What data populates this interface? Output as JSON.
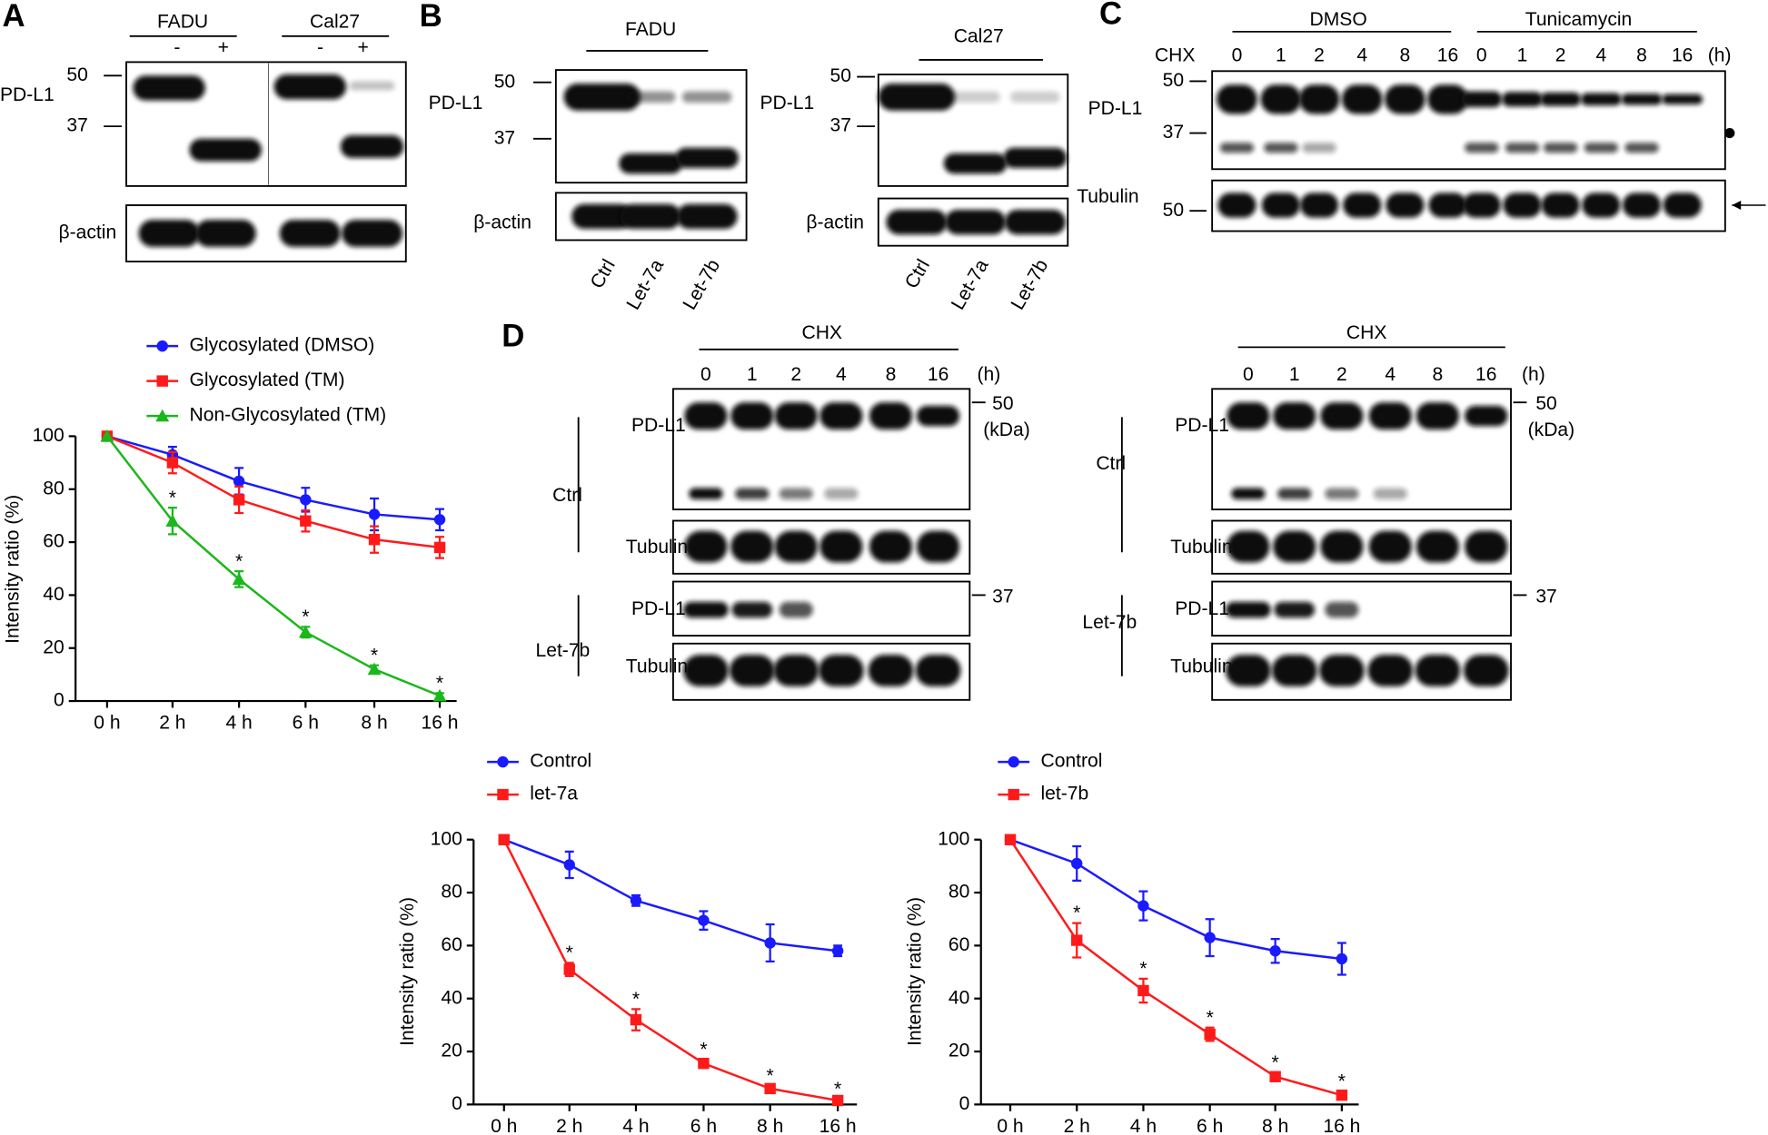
{
  "panels": [
    {
      "letter": "A",
      "groups": [
        "FADU",
        "Cal27"
      ],
      "lanes": [
        "-",
        "+",
        "-",
        "+"
      ],
      "markers": [
        "50",
        "37"
      ],
      "proteins": [
        "PD-L1",
        "β-actin"
      ]
    },
    {
      "letter": "B",
      "blots": [
        {
          "group": "FADU",
          "markers": [
            "50",
            "37"
          ],
          "proteins": [
            "PD-L1",
            "β-actin"
          ],
          "lanes": [
            "Ctrl",
            "Let-7a",
            "Let-7b"
          ]
        },
        {
          "group": "Cal27",
          "markers": [
            "50",
            "37"
          ],
          "proteins": [
            "PD-L1",
            "β-actin"
          ],
          "lanes": [
            "Ctrl",
            "Let-7a",
            "Let-7b"
          ]
        }
      ]
    },
    {
      "letter": "C",
      "groups": [
        "DMSO",
        "Tunicamycin"
      ],
      "treatment": "CHX",
      "times": [
        "0",
        "1",
        "2",
        "4",
        "8",
        "16",
        "0",
        "1",
        "2",
        "4",
        "8",
        "16"
      ],
      "unit": "(h)",
      "proteins": [
        "PD-L1",
        "Tubulin"
      ],
      "markers": [
        "50",
        "37",
        "50"
      ]
    },
    {
      "letter": "D",
      "blots": [
        {
          "treatment": "CHX",
          "times": [
            "0",
            "1",
            "2",
            "4",
            "8",
            "16"
          ],
          "unit": "(h)",
          "markers": [
            "50",
            "(kDa)",
            "37"
          ],
          "conditions": [
            "Ctrl",
            "Let-7b"
          ],
          "proteins": [
            "PD-L1",
            "Tubulin",
            "PD-L1",
            "Tubulin"
          ]
        },
        {
          "treatment": "CHX",
          "times": [
            "0",
            "1",
            "2",
            "4",
            "8",
            "16"
          ],
          "unit": "(h)",
          "markers": [
            "50",
            "(kDa)",
            "37"
          ],
          "conditions": [
            "Ctrl",
            "Let-7b"
          ],
          "proteins": [
            "PD-L1",
            "Tubulin",
            "PD-L1",
            "Tubulin"
          ]
        }
      ]
    }
  ],
  "chart_data": [
    {
      "type": "line",
      "ylabel": "Intensity ratio (%)",
      "categories": [
        "0 h",
        "2 h",
        "4 h",
        "6 h",
        "8 h",
        "16 h"
      ],
      "ylim": [
        0,
        100
      ],
      "yticks": [
        0,
        20,
        40,
        60,
        80,
        100
      ],
      "series": [
        {
          "name": "Glycosylated (DMSO)",
          "color": "#1a1aff",
          "marker": "circle",
          "values": [
            100,
            93,
            83,
            76,
            70.5,
            68.5
          ],
          "errors": [
            0,
            3,
            5,
            4.5,
            6,
            4
          ]
        },
        {
          "name": "Glycosylated (TM)",
          "color": "#ff1a1a",
          "marker": "square",
          "values": [
            100,
            90,
            76,
            68,
            61,
            58
          ],
          "errors": [
            0,
            4,
            5,
            4,
            5,
            4
          ]
        },
        {
          "name": "Non-Glycosylated (TM)",
          "color": "#1ab81a",
          "marker": "triangle",
          "values": [
            100,
            68,
            46,
            26,
            12,
            2
          ],
          "errors": [
            0,
            5,
            3,
            2,
            1.5,
            1
          ],
          "significance": [
            null,
            "*",
            "*",
            "*",
            "*",
            "*"
          ]
        }
      ]
    },
    {
      "type": "line",
      "ylabel": "Intensity ratio (%)",
      "categories": [
        "0 h",
        "2 h",
        "4 h",
        "6 h",
        "8 h",
        "16 h"
      ],
      "ylim": [
        0,
        100
      ],
      "yticks": [
        0,
        20,
        40,
        60,
        80,
        100
      ],
      "series": [
        {
          "name": "Control",
          "color": "#1a1aff",
          "marker": "circle",
          "values": [
            100,
            90.5,
            77,
            69.5,
            61,
            58
          ],
          "errors": [
            0,
            5,
            2,
            3.5,
            7,
            2
          ]
        },
        {
          "name": "let-7a",
          "color": "#ff1a1a",
          "marker": "square",
          "values": [
            100,
            51,
            32,
            15.5,
            6,
            1.5
          ],
          "errors": [
            0,
            2.5,
            4,
            1.5,
            1,
            0.5
          ],
          "significance": [
            null,
            "*",
            "*",
            "*",
            "*",
            "*"
          ]
        }
      ]
    },
    {
      "type": "line",
      "ylabel": "Intensity ratio (%)",
      "categories": [
        "0 h",
        "2 h",
        "4 h",
        "6 h",
        "8 h",
        "16 h"
      ],
      "ylim": [
        0,
        100
      ],
      "yticks": [
        0,
        20,
        40,
        60,
        80,
        100
      ],
      "series": [
        {
          "name": "Control",
          "color": "#1a1aff",
          "marker": "circle",
          "values": [
            100,
            91,
            75,
            63,
            58,
            55
          ],
          "errors": [
            0,
            6.5,
            5.5,
            7,
            4.5,
            6
          ]
        },
        {
          "name": "let-7b",
          "color": "#ff1a1a",
          "marker": "square",
          "values": [
            100,
            62,
            43,
            26.5,
            10.5,
            3.5
          ],
          "errors": [
            0,
            6.5,
            4.5,
            2.5,
            1.5,
            1.5
          ],
          "significance": [
            null,
            "*",
            "*",
            "*",
            "*",
            "*"
          ]
        }
      ]
    }
  ]
}
